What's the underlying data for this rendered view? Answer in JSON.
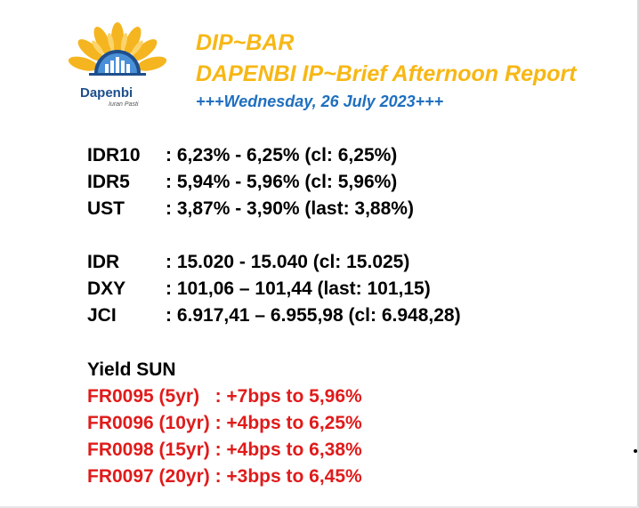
{
  "logo": {
    "name": "Dapenbi",
    "tagline": "Iuran Pasti",
    "colors": {
      "petal": "#f5b520",
      "dark_blue": "#1e4f8c",
      "light_blue": "#4a90d9"
    }
  },
  "header": {
    "line1": "DIP~BAR",
    "line2": "DAPENBI IP~Brief Afternoon Report",
    "line3": "+++Wednesday, 26 July 2023+++"
  },
  "rates": [
    {
      "label": "IDR10",
      "value": ": 6,23% - 6,25% (cl: 6,25%)"
    },
    {
      "label": "IDR5",
      "value": ": 5,94% - 5,96% (cl: 5,96%)"
    },
    {
      "label": "UST",
      "value": ": 3,87% - 3,90% (last: 3,88%)"
    }
  ],
  "markets": [
    {
      "label": "IDR",
      "value": ": 15.020 - 15.040 (cl: 15.025)"
    },
    {
      "label": "DXY",
      "value": ": 101,06 – 101,44 (last: 101,15)"
    },
    {
      "label": "JCI",
      "value": ": 6.917,41 – 6.955,98 (cl: 6.948,28)"
    }
  ],
  "yield_sun": {
    "title": "Yield SUN",
    "items": [
      "FR0095 (5yr)   : +7bps to 5,96%",
      "FR0096 (10yr) : +4bps to 6,25%",
      "FR0098 (15yr) : +4bps to 6,38%",
      "FR0097 (20yr) : +3bps to 6,45%"
    ]
  },
  "colors": {
    "header_gold": "#f7b715",
    "date_blue": "#1f6fbf",
    "body_black": "#000000",
    "sun_red": "#e01b1b"
  }
}
